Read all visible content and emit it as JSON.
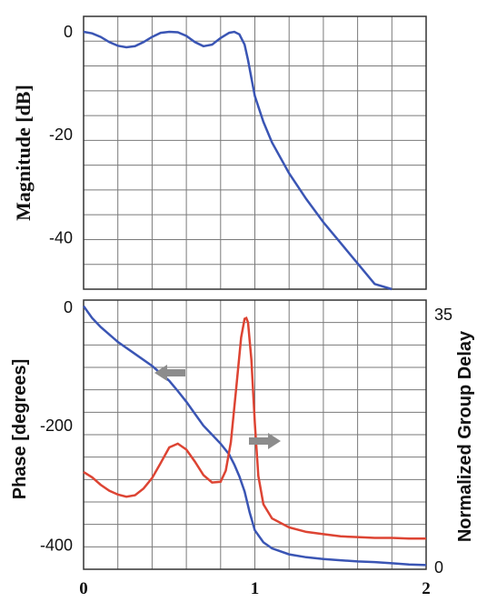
{
  "colors": {
    "magnitude": "#3a55b4",
    "phase": "#3a55b4",
    "group_delay": "#dd4433",
    "arrow": "#8c8c8c"
  },
  "chart_data": [
    {
      "type": "line",
      "ylabel": "Magnitude [dB]",
      "xlim": [
        0,
        2
      ],
      "ylim": [
        -50,
        3
      ],
      "y_ticks": [
        "0",
        "-20",
        "-40"
      ],
      "grid": true,
      "series": [
        {
          "x": [
            0,
            0.05,
            0.1,
            0.15,
            0.2,
            0.25,
            0.3,
            0.35,
            0.4,
            0.45,
            0.5,
            0.55,
            0.6,
            0.65,
            0.7,
            0.75,
            0.8,
            0.85,
            0.88,
            0.91,
            0.94,
            0.96,
            0.98,
            1.0,
            1.05,
            1.1,
            1.2,
            1.3,
            1.4,
            1.5,
            1.6,
            1.7,
            1.8
          ],
          "y": [
            0,
            -0.3,
            -1.0,
            -2.0,
            -2.7,
            -3.0,
            -2.8,
            -2.0,
            -1.0,
            -0.2,
            0,
            -0.1,
            -0.8,
            -2.0,
            -2.8,
            -2.5,
            -1.2,
            -0.2,
            0,
            -0.5,
            -2.5,
            -5.5,
            -9,
            -12.5,
            -17.5,
            -21.5,
            -27.5,
            -32.5,
            -37,
            -41,
            -45,
            -49,
            -52
          ]
        }
      ]
    },
    {
      "type": "line",
      "xlim": [
        0,
        2
      ],
      "x_ticks": [
        "0",
        "1",
        "2"
      ],
      "grid": true,
      "y_left": {
        "label": "Phase [degrees]",
        "ticks": [
          "0",
          "-200",
          "-400"
        ],
        "lim": [
          -440,
          10
        ]
      },
      "y_right": {
        "label": "Normalized Group Delay",
        "ticks": [
          "35",
          "0"
        ],
        "lim": [
          0,
          36
        ]
      },
      "series": [
        {
          "axis": "left",
          "x": [
            0,
            0.05,
            0.1,
            0.2,
            0.3,
            0.4,
            0.5,
            0.55,
            0.6,
            0.65,
            0.7,
            0.75,
            0.8,
            0.85,
            0.88,
            0.91,
            0.94,
            0.97,
            1.0,
            1.05,
            1.1,
            1.2,
            1.3,
            1.4,
            1.5,
            1.6,
            1.7,
            1.8,
            1.9,
            2.0
          ],
          "y": [
            0,
            -20,
            -35,
            -60,
            -80,
            -100,
            -125,
            -142,
            -160,
            -180,
            -200,
            -215,
            -230,
            -248,
            -265,
            -285,
            -310,
            -345,
            -375,
            -395,
            -405,
            -415,
            -420,
            -423,
            -425,
            -427,
            -428,
            -430,
            -432,
            -433
          ]
        },
        {
          "axis": "right",
          "x": [
            0,
            0.05,
            0.1,
            0.15,
            0.2,
            0.25,
            0.3,
            0.35,
            0.4,
            0.45,
            0.5,
            0.55,
            0.6,
            0.65,
            0.7,
            0.75,
            0.8,
            0.83,
            0.86,
            0.89,
            0.92,
            0.94,
            0.95,
            0.96,
            0.98,
            1.0,
            1.02,
            1.05,
            1.1,
            1.2,
            1.3,
            1.4,
            1.5,
            1.6,
            1.7,
            1.8,
            1.9,
            2.0
          ],
          "y": [
            13,
            12.3,
            11.3,
            10.5,
            10.0,
            9.7,
            9.9,
            10.8,
            12.2,
            14.2,
            16.3,
            16.8,
            16.0,
            14.4,
            12.6,
            11.6,
            11.7,
            13.2,
            17.0,
            24.0,
            31.0,
            33.5,
            33.6,
            33.0,
            28.0,
            19.5,
            12.5,
            8.7,
            6.8,
            5.6,
            5.0,
            4.7,
            4.4,
            4.3,
            4.2,
            4.2,
            4.1,
            4.1
          ]
        }
      ]
    }
  ]
}
